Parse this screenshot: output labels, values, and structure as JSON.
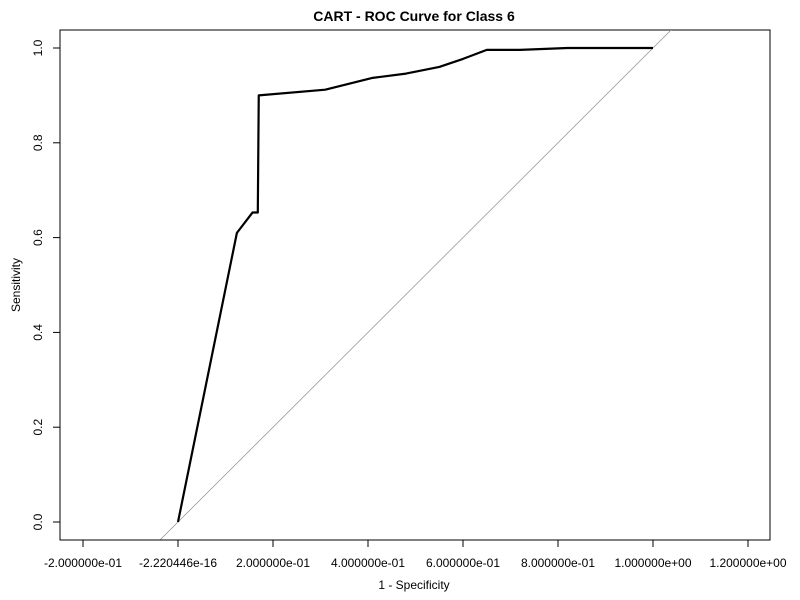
{
  "chart_data": {
    "type": "line",
    "title": "CART - ROC Curve for Class 6",
    "xlabel": "1 - Specificity",
    "ylabel": "Sensitivity",
    "xlim": [
      -0.2,
      1.2
    ],
    "ylim": [
      0.0,
      1.0
    ],
    "x_ticks": [
      -0.2,
      0.0,
      0.2,
      0.4,
      0.6,
      0.8,
      1.0,
      1.2
    ],
    "x_tick_labels": [
      "-2.000000e-01",
      "-2.220446e-16",
      "2.000000e-01",
      "4.000000e-01",
      "6.000000e-01",
      "8.000000e-01",
      "1.000000e+00",
      "1.200000e+00"
    ],
    "y_ticks": [
      0.0,
      0.2,
      0.4,
      0.6,
      0.8,
      1.0
    ],
    "y_tick_labels": [
      "0.0",
      "0.2",
      "0.4",
      "0.6",
      "0.8",
      "1.0"
    ],
    "grid": false,
    "series": [
      {
        "x": [
          0.0,
          0.124,
          0.157,
          0.168,
          0.17,
          0.31,
          0.41,
          0.48,
          0.55,
          0.6,
          0.65,
          0.72,
          0.82,
          1.0
        ],
        "y": [
          0.0,
          0.61,
          0.653,
          0.653,
          0.9,
          0.912,
          0.937,
          0.946,
          0.96,
          0.977,
          0.996,
          0.996,
          1.0,
          1.0
        ]
      }
    ],
    "reference_line": {
      "x": [
        -0.04,
        1.04
      ],
      "y": [
        -0.04,
        1.04
      ]
    },
    "colors": {
      "roc": "#000000",
      "reference": "#9a9a9a"
    }
  }
}
